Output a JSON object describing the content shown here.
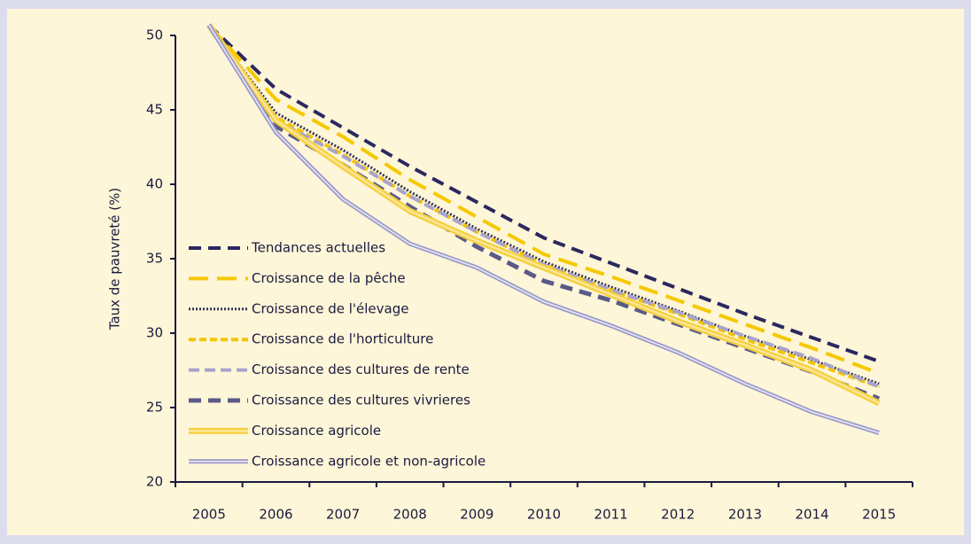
{
  "chart_data": {
    "type": "line",
    "ylabel": "Taux de pauvreté (%)",
    "categories": [
      "2005",
      "2006",
      "2007",
      "2008",
      "2009",
      "2010",
      "2011",
      "2012",
      "2013",
      "2014",
      "2015"
    ],
    "series": [
      {
        "name": "Tendances actuelles",
        "color": "#2b2860",
        "values": [
          50.7,
          46.4,
          43.8,
          41.2,
          38.8,
          36.4,
          34.7,
          33.0,
          31.3,
          29.7,
          28.1
        ]
      },
      {
        "name": "Croissance de la pêche",
        "color": "#f5c800",
        "values": [
          50.7,
          45.7,
          43.2,
          40.3,
          37.8,
          35.3,
          33.8,
          32.2,
          30.6,
          29.0,
          27.3
        ]
      },
      {
        "name": "Croissance de l'élevage",
        "color": "#333355",
        "values": [
          50.7,
          44.8,
          42.3,
          39.5,
          37.0,
          34.8,
          33.1,
          31.5,
          29.8,
          28.2,
          26.6
        ]
      },
      {
        "name": "Croissance de l'horticulture",
        "color": "#f5c400",
        "values": [
          50.7,
          44.5,
          42.0,
          39.2,
          36.8,
          34.6,
          32.9,
          31.3,
          29.6,
          28.0,
          26.4
        ]
      },
      {
        "name": "Croissance des cultures de rente",
        "color": "#a8a4cc",
        "values": [
          50.7,
          44.3,
          41.9,
          39.2,
          36.8,
          34.6,
          32.9,
          31.4,
          29.8,
          28.3,
          26.4
        ]
      },
      {
        "name": "Croissance des cultures vivrieres",
        "color": "#5a5a88",
        "values": [
          50.7,
          43.9,
          41.3,
          38.5,
          35.8,
          33.5,
          32.2,
          30.6,
          29.0,
          27.4,
          25.6
        ]
      },
      {
        "name": "Croissance agricole",
        "color": "#f5d040",
        "values": [
          50.7,
          44.3,
          41.2,
          38.2,
          36.2,
          34.4,
          32.6,
          30.8,
          29.2,
          27.5,
          25.3
        ]
      },
      {
        "name": "Croissance agricole et non-agricole",
        "color": "#9a98c8",
        "values": [
          50.7,
          43.5,
          39.0,
          36.0,
          34.4,
          32.1,
          30.5,
          28.7,
          26.6,
          24.7,
          23.3
        ]
      }
    ],
    "ylim": [
      20,
      50
    ],
    "yticks": [
      20,
      25,
      30,
      35,
      40,
      45,
      50
    ]
  }
}
